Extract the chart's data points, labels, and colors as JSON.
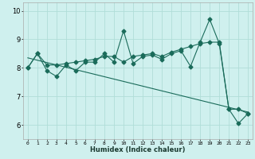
{
  "xlabel": "Humidex (Indice chaleur)",
  "xlim": [
    -0.5,
    23.5
  ],
  "ylim": [
    5.5,
    10.3
  ],
  "xticks": [
    0,
    1,
    2,
    3,
    4,
    5,
    6,
    7,
    8,
    9,
    10,
    11,
    12,
    13,
    14,
    15,
    16,
    17,
    18,
    19,
    20,
    21,
    22,
    23
  ],
  "yticks": [
    6,
    7,
    8,
    9,
    10
  ],
  "bg_color": "#cff0ee",
  "grid_color": "#b0ddd8",
  "line_color": "#1a6b5a",
  "series1_x": [
    0,
    1,
    2,
    3,
    4,
    5,
    6,
    7,
    8,
    9,
    10,
    11,
    12,
    13,
    14,
    15,
    16,
    17,
    18,
    19,
    20,
    21,
    22,
    23
  ],
  "series1_y": [
    8.0,
    8.5,
    7.9,
    7.7,
    8.1,
    7.9,
    8.2,
    8.2,
    8.5,
    8.2,
    9.3,
    8.15,
    8.4,
    8.45,
    8.3,
    8.5,
    8.6,
    8.05,
    8.9,
    9.7,
    8.85,
    6.55,
    6.05,
    6.4
  ],
  "series2_x": [
    0,
    1,
    2,
    3,
    4,
    5,
    6,
    7,
    8,
    9,
    10,
    11,
    12,
    13,
    14,
    15,
    16,
    17,
    18,
    19,
    20,
    21,
    22,
    23
  ],
  "series2_y": [
    8.0,
    8.5,
    8.1,
    8.1,
    8.15,
    8.2,
    8.25,
    8.3,
    8.4,
    8.4,
    8.2,
    8.4,
    8.45,
    8.5,
    8.4,
    8.55,
    8.65,
    8.75,
    8.85,
    8.9,
    8.9,
    6.55,
    6.55,
    6.4
  ],
  "trend_x": [
    0,
    23
  ],
  "trend_y": [
    8.35,
    6.45
  ],
  "markersize": 2.5
}
